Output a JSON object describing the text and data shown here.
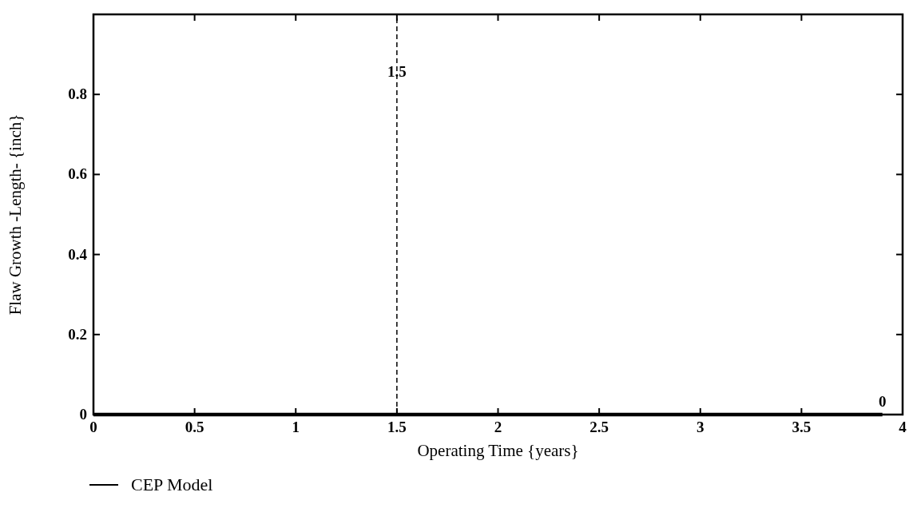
{
  "chart_data": {
    "type": "line",
    "xlabel": "Operating Time  {years}",
    "ylabel": "Flaw Growth  -Length-  {inch}",
    "xlim": [
      0,
      4
    ],
    "xticks": [
      0,
      0.5,
      1,
      1.5,
      2,
      2.5,
      3,
      3.5,
      4
    ],
    "ylim": [
      0,
      1
    ],
    "yticks": [
      0,
      0.2,
      0.4,
      0.6,
      0.8
    ],
    "series": [
      {
        "name": "CEP Model",
        "color": "#000000",
        "x": [
          0,
          3.9
        ],
        "values": [
          0,
          0
        ]
      }
    ],
    "ref_lines": [
      {
        "axis": "x",
        "value": 1.5,
        "label": "1.5",
        "line_style": "dashed",
        "color": "#000000"
      }
    ],
    "annotations": [
      {
        "text": "0",
        "x": 3.9,
        "y": 0
      }
    ],
    "legend": "bottom left",
    "grid": false
  }
}
